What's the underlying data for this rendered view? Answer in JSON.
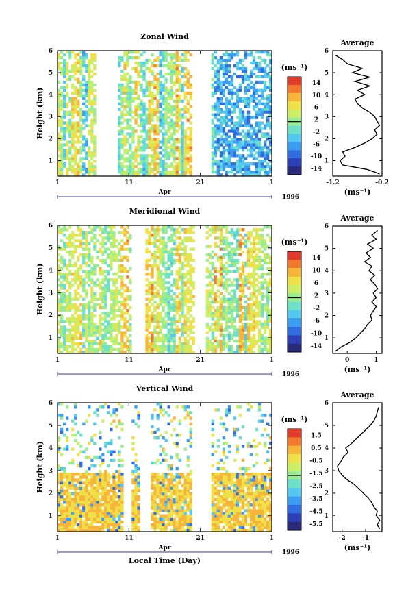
{
  "chart_data": [
    {
      "id": "zonal",
      "type": "heatmap",
      "title": "Zonal Wind",
      "ylabel": "Height (km)",
      "xlabel": "",
      "x_ticks": [
        "1",
        "11",
        "21",
        "1"
      ],
      "x_month": "Apr",
      "year": "1996",
      "ylim": [
        0.3,
        6
      ],
      "y_ticks": [
        1,
        2,
        3,
        4,
        5,
        6
      ],
      "colorbar": {
        "unit": "(ms⁻¹)",
        "ticks": [
          "14",
          "10",
          "6",
          "2",
          "-2",
          "-6",
          "-10",
          "-14"
        ]
      },
      "average": {
        "title": "Average",
        "xlim": [
          -1.2,
          -0.2
        ],
        "x_ticks": [
          "-1.2",
          "-0.2"
        ],
        "unit": "(ms⁻¹)",
        "heights": [
          0.4,
          0.6,
          0.8,
          1.0,
          1.2,
          1.4,
          1.6,
          1.8,
          2.0,
          2.2,
          2.4,
          2.6,
          2.8,
          3.0,
          3.2,
          3.4,
          3.6,
          3.8,
          4.0,
          4.2,
          4.4,
          4.6,
          4.8,
          5.0,
          5.2,
          5.4,
          5.6,
          5.8
        ],
        "values": [
          -0.25,
          -0.5,
          -1.0,
          -1.05,
          -0.95,
          -1.0,
          -0.75,
          -0.55,
          -0.4,
          -0.3,
          -0.35,
          -0.25,
          -0.3,
          -0.35,
          -0.45,
          -0.6,
          -0.7,
          -0.75,
          -0.55,
          -0.7,
          -0.45,
          -0.75,
          -0.45,
          -0.8,
          -0.6,
          -0.9,
          -1.0,
          -1.15
        ]
      }
    },
    {
      "id": "meridional",
      "type": "heatmap",
      "title": "Meridional Wind",
      "ylabel": "Height (km)",
      "xlabel": "",
      "x_ticks": [
        "1",
        "11",
        "21",
        "1"
      ],
      "x_month": "Apr",
      "year": "1996",
      "ylim": [
        0.3,
        6
      ],
      "y_ticks": [
        1,
        2,
        3,
        4,
        5,
        6
      ],
      "colorbar": {
        "unit": "(ms⁻¹)",
        "ticks": [
          "14",
          "10",
          "6",
          "2",
          "-2",
          "-6",
          "-10",
          "-14"
        ]
      },
      "average": {
        "title": "Average",
        "xlim": [
          -0.5,
          1.2
        ],
        "x_ticks": [
          "0",
          "1"
        ],
        "unit": "(ms⁻¹)",
        "heights": [
          0.4,
          0.6,
          0.8,
          1.0,
          1.2,
          1.4,
          1.6,
          1.8,
          2.0,
          2.2,
          2.4,
          2.6,
          2.8,
          3.0,
          3.2,
          3.4,
          3.6,
          3.8,
          4.0,
          4.2,
          4.4,
          4.6,
          4.8,
          5.0,
          5.2,
          5.4,
          5.6,
          5.8
        ],
        "values": [
          -0.4,
          -0.2,
          0.1,
          0.3,
          0.45,
          0.6,
          0.7,
          0.85,
          0.8,
          0.9,
          1.0,
          0.85,
          1.0,
          0.9,
          1.05,
          0.95,
          0.8,
          0.95,
          0.75,
          0.85,
          0.6,
          0.8,
          0.65,
          0.9,
          0.7,
          1.0,
          0.85,
          1.05
        ]
      }
    },
    {
      "id": "vertical",
      "type": "heatmap",
      "title": "Vertical Wind",
      "ylabel": "Height (km)",
      "xlabel": "Local Time (Day)",
      "x_ticks": [
        "1",
        "11",
        "21",
        "1"
      ],
      "x_month": "Apr",
      "year": "1996",
      "ylim": [
        0.3,
        6
      ],
      "y_ticks": [
        1,
        2,
        3,
        4,
        5,
        6
      ],
      "colorbar": {
        "unit": "(ms⁻¹)",
        "ticks": [
          "1.5",
          "0.5",
          "-0.5",
          "-1.5",
          "-2.5",
          "-3.5",
          "-4.5",
          "-5.5"
        ]
      },
      "average": {
        "title": "Average",
        "xlim": [
          -2.4,
          -0.3
        ],
        "x_ticks": [
          "-2",
          "-1"
        ],
        "unit": "(ms⁻¹)",
        "heights": [
          0.4,
          0.6,
          0.8,
          1.0,
          1.2,
          1.4,
          1.6,
          1.8,
          2.0,
          2.2,
          2.4,
          2.6,
          2.8,
          3.0,
          3.2,
          3.4,
          3.6,
          3.8,
          4.0,
          4.2,
          4.4,
          4.6,
          4.8,
          5.0,
          5.2,
          5.4,
          5.6,
          5.8
        ],
        "values": [
          -0.4,
          -0.5,
          -0.4,
          -0.55,
          -0.5,
          -0.65,
          -0.75,
          -0.9,
          -1.1,
          -1.3,
          -1.5,
          -1.8,
          -2.0,
          -2.15,
          -2.2,
          -2.05,
          -1.95,
          -1.75,
          -1.85,
          -1.6,
          -1.4,
          -1.2,
          -1.0,
          -0.8,
          -0.65,
          -0.55,
          -0.5,
          -0.45
        ]
      }
    }
  ]
}
